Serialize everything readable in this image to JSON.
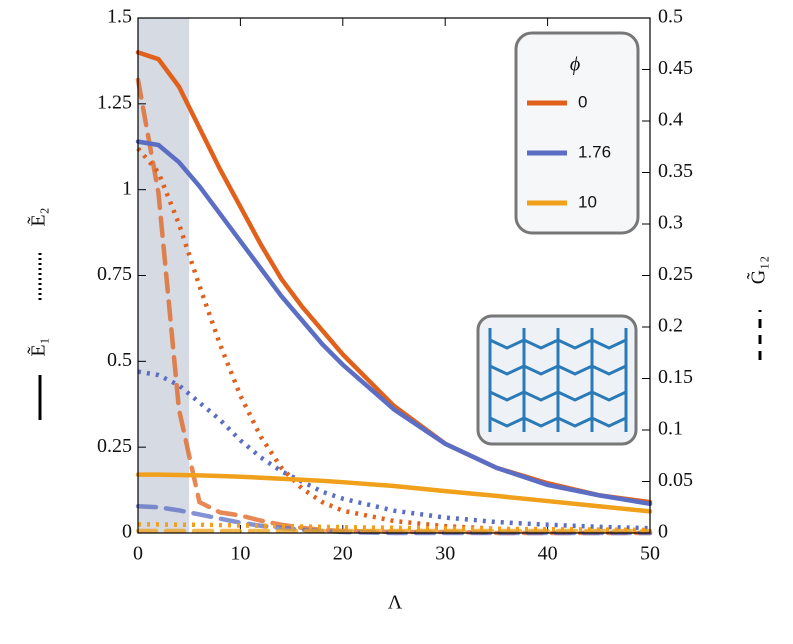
{
  "chart_data": {
    "type": "line",
    "x_label": "Λ",
    "y_labels": [
      "Ẽ₁",
      "Ẽ₂"
    ],
    "y2_label": "G̃₁₂",
    "legend_title": "ϕ",
    "xlim": [
      0,
      50
    ],
    "xticks": [
      0,
      10,
      20,
      30,
      40,
      50
    ],
    "ylim": [
      0,
      1.5
    ],
    "yticks": [
      0,
      0.25,
      0.5,
      0.75,
      1,
      1.25,
      1.5
    ],
    "y2lim": [
      0,
      0.5
    ],
    "y2ticks": [
      0,
      0.05,
      0.1,
      0.15,
      0.2,
      0.25,
      0.3,
      0.35,
      0.4,
      0.45,
      0.5
    ],
    "shade": [
      0,
      5
    ],
    "shade_color": "#d5dae3",
    "x": [
      0,
      2,
      4,
      6,
      8,
      10,
      12,
      14,
      16,
      18,
      20,
      25,
      30,
      35,
      40,
      45,
      50
    ],
    "series": [
      {
        "name": "0",
        "color": "#e0601c",
        "E1": [
          1.4,
          1.38,
          1.3,
          1.18,
          1.06,
          0.95,
          0.84,
          0.74,
          0.66,
          0.59,
          0.52,
          0.37,
          0.26,
          0.19,
          0.145,
          0.11,
          0.09
        ],
        "E2": [
          1.12,
          1.05,
          0.9,
          0.72,
          0.55,
          0.4,
          0.28,
          0.19,
          0.13,
          0.09,
          0.065,
          0.035,
          0.02,
          0.012,
          0.008,
          0.005,
          0.004
        ],
        "G12": [
          0.44,
          0.33,
          0.12,
          0.03,
          0.02,
          0.017,
          0.012,
          0.008,
          0.005,
          0.003,
          0.002,
          0.001,
          0.001,
          0,
          0,
          0,
          0
        ]
      },
      {
        "name": "1.76",
        "color": "#5b6ec4",
        "E1": [
          1.14,
          1.13,
          1.08,
          1.01,
          0.93,
          0.85,
          0.77,
          0.69,
          0.62,
          0.55,
          0.49,
          0.36,
          0.26,
          0.19,
          0.14,
          0.11,
          0.085
        ],
        "E2": [
          0.47,
          0.46,
          0.43,
          0.38,
          0.33,
          0.27,
          0.22,
          0.18,
          0.15,
          0.12,
          0.1,
          0.065,
          0.045,
          0.032,
          0.024,
          0.018,
          0.014
        ],
        "G12": [
          0.026,
          0.025,
          0.022,
          0.018,
          0.014,
          0.01,
          0.007,
          0.005,
          0.003,
          0.002,
          0.001,
          0,
          0,
          0,
          0,
          0,
          0
        ]
      },
      {
        "name": "10",
        "color": "#f0a01a",
        "E1": [
          0.17,
          0.17,
          0.169,
          0.168,
          0.166,
          0.164,
          0.161,
          0.158,
          0.155,
          0.152,
          0.148,
          0.137,
          0.122,
          0.108,
          0.093,
          0.078,
          0.063
        ],
        "E2": [
          0.025,
          0.025,
          0.024,
          0.024,
          0.023,
          0.022,
          0.021,
          0.02,
          0.019,
          0.018,
          0.017,
          0.015,
          0.013,
          0.012,
          0.011,
          0.01,
          0.009
        ],
        "G12": [
          0.002,
          0.002,
          0.002,
          0.002,
          0.002,
          0.002,
          0.002,
          0.002,
          0.002,
          0.002,
          0.002,
          0.002,
          0.002,
          0.002,
          0.002,
          0.002,
          0.002
        ]
      }
    ]
  }
}
